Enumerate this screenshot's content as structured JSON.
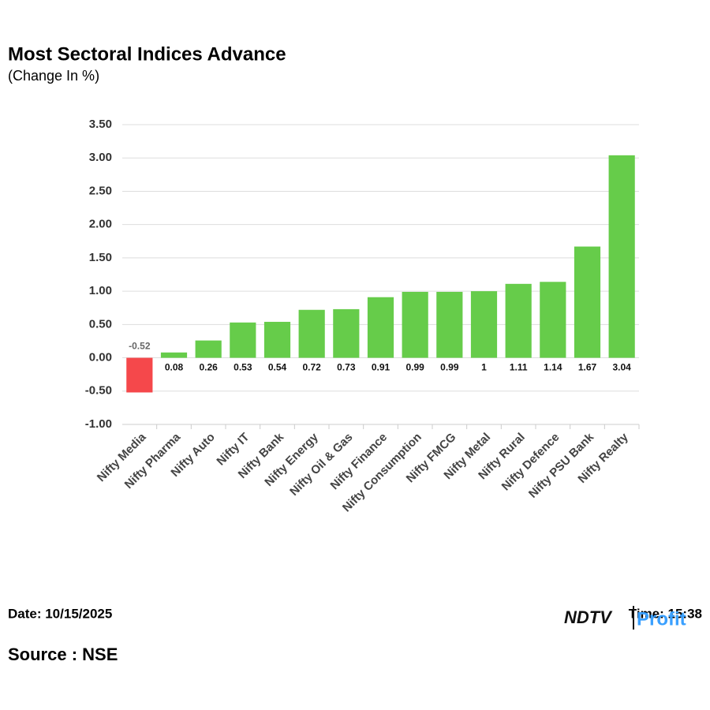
{
  "chart_data": {
    "type": "bar",
    "title": "Most Sectoral Indices Advance",
    "subtitle": "(Change In %)",
    "categories": [
      "Nifty Media",
      "Nifty Pharma",
      "Nifty Auto",
      "Nifty IT",
      "Nifty Bank",
      "Nifty Energy",
      "Nifty Oil & Gas",
      "Nifty Finance",
      "Nifty Consumption",
      "Nifty FMCG",
      "Nifty Metal",
      "Nifty Rural",
      "Nifty Defence",
      "Nifty PSU Bank",
      "Nifty Realty"
    ],
    "values": [
      -0.52,
      0.08,
      0.26,
      0.53,
      0.54,
      0.72,
      0.73,
      0.91,
      0.99,
      0.99,
      1,
      1.11,
      1.14,
      1.67,
      3.04
    ],
    "positive_color": "#66cc4a",
    "negative_color": "#f5484b",
    "ylim": [
      -1,
      3.5
    ],
    "yticks": [
      {
        "value": -1,
        "label": "-1.00"
      },
      {
        "value": -0.5,
        "label": "-0.50"
      },
      {
        "value": 0,
        "label": "0.00"
      },
      {
        "value": 0.5,
        "label": "0.50"
      },
      {
        "value": 1,
        "label": "1.00"
      },
      {
        "value": 1.5,
        "label": "1.50"
      },
      {
        "value": 2,
        "label": "2.00"
      },
      {
        "value": 2.5,
        "label": "2.50"
      },
      {
        "value": 3,
        "label": "3.00"
      },
      {
        "value": 3.5,
        "label": "3.50"
      }
    ],
    "grid": true
  },
  "footer": {
    "date": "Date: 10/15/2025",
    "source": "Source : NSE",
    "time": "Time: 15:38",
    "logo_left": "NDTV",
    "logo_right": "Profit"
  }
}
